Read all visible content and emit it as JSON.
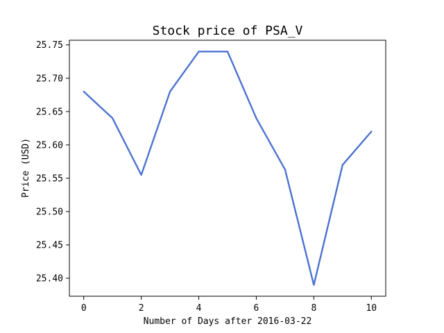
{
  "chart_data": {
    "type": "line",
    "title": "Stock price of PSA_V",
    "xlabel": "Number of Days after 2016-03-22",
    "ylabel": "Price (USD)",
    "x": [
      0,
      1,
      2,
      3,
      4,
      5,
      6,
      7,
      8,
      9,
      10
    ],
    "series": [
      {
        "values": [
          25.68,
          25.64,
          25.555,
          25.68,
          25.74,
          25.74,
          25.64,
          25.563,
          25.39,
          25.57,
          25.62
        ],
        "color": "#4c72d0"
      }
    ],
    "xlim": [
      -0.5,
      10.5
    ],
    "ylim": [
      25.373,
      25.757
    ],
    "x_ticks": [
      "0",
      "2",
      "4",
      "6",
      "8",
      "10"
    ],
    "y_ticks": [
      "25.40",
      "25.45",
      "25.50",
      "25.55",
      "25.60",
      "25.65",
      "25.70",
      "25.75"
    ],
    "grid": false,
    "legend": "none"
  }
}
